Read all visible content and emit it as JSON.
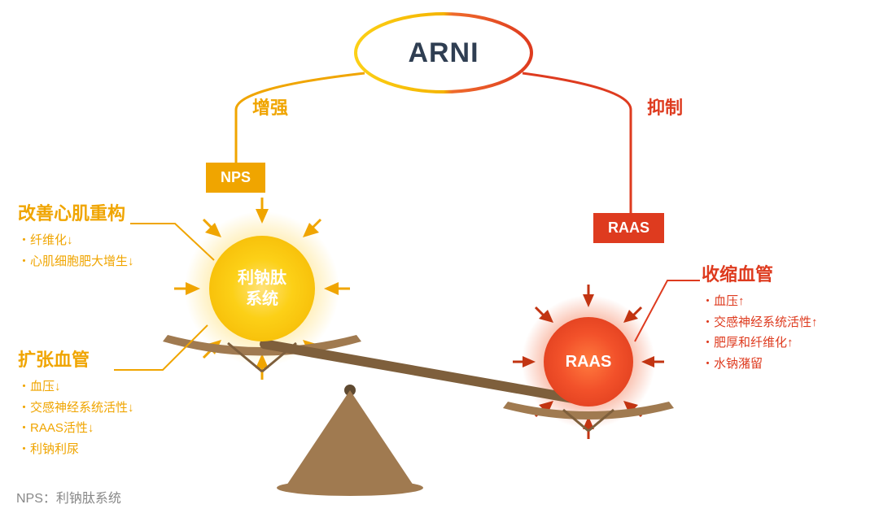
{
  "title": "ARNI",
  "colors": {
    "yellow": "#f0a500",
    "yellow_light": "#fcd017",
    "orange": "#de3b1f",
    "orange_dark": "#c23412",
    "arni_text": "#2f3e52",
    "seesaw": "#a07a50",
    "seesaw_dark": "#7e5f3c",
    "footnote": "#888888"
  },
  "branches": {
    "left": {
      "label": "增强",
      "box": "NPS"
    },
    "right": {
      "label": "抑制",
      "box": "RAAS"
    }
  },
  "balls": {
    "nps": {
      "line1": "利钠肽",
      "line2": "系统"
    },
    "raas": {
      "label": "RAAS"
    }
  },
  "callouts": {
    "topLeft": {
      "title": "改善心肌重构",
      "items": [
        "纤维化↓",
        "心肌细胞肥大增生↓"
      ]
    },
    "bottomLeft": {
      "title": "扩张血管",
      "items": [
        "血压↓",
        "交感神经系统活性↓",
        "RAAS活性↓",
        "利钠利尿"
      ]
    },
    "right": {
      "title": "收缩血管",
      "items": [
        "血压↑",
        "交感神经系统活性↑",
        "肥厚和纤维化↑",
        "水钠潴留"
      ]
    }
  },
  "footnote": "NPS：利钠肽系统"
}
